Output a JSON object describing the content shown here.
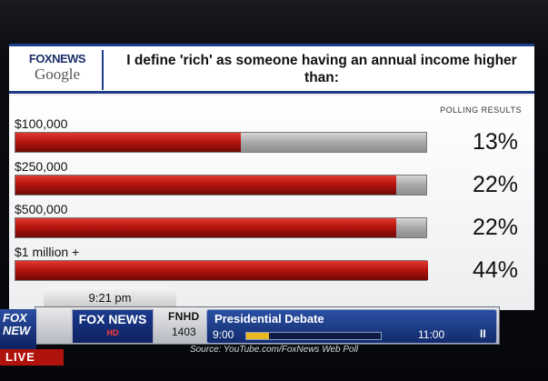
{
  "header": {
    "logo_primary": "FOXNEWS",
    "logo_secondary": "Google",
    "question": "I define 'rich' as someone having an annual income higher than:"
  },
  "colors": {
    "bar_red": "#b8140f",
    "bar_grey": "#a8a8a8",
    "brand_blue": "#1e3c88"
  },
  "chart_data": {
    "type": "bar",
    "orientation": "horizontal",
    "title": "I define 'rich' as someone having an annual income higher than:",
    "subtitle": "POLLING RESULTS",
    "categories": [
      "$100,000",
      "$250,000",
      "$500,000",
      "$1 million +"
    ],
    "values": [
      13,
      22,
      22,
      44
    ],
    "value_labels": [
      "13%",
      "22%",
      "22%",
      "44%"
    ],
    "unit": "%",
    "xlim": [
      0,
      100
    ],
    "grid": false
  },
  "ticker": {
    "time": "9:21 pm",
    "network_logo": "FOX NEWS",
    "network_logo_sub": "HD",
    "network_code": "FNHD",
    "channel_number": "1403",
    "program_title": "Presidential Debate",
    "start_time": "9:00",
    "end_time": "11:00",
    "progress": 0.17,
    "pause_symbol": "II"
  },
  "source": "Source: YouTube.com/FoxNews Web Poll",
  "side_logo": "FOX NEW",
  "live_label": "LIVE"
}
